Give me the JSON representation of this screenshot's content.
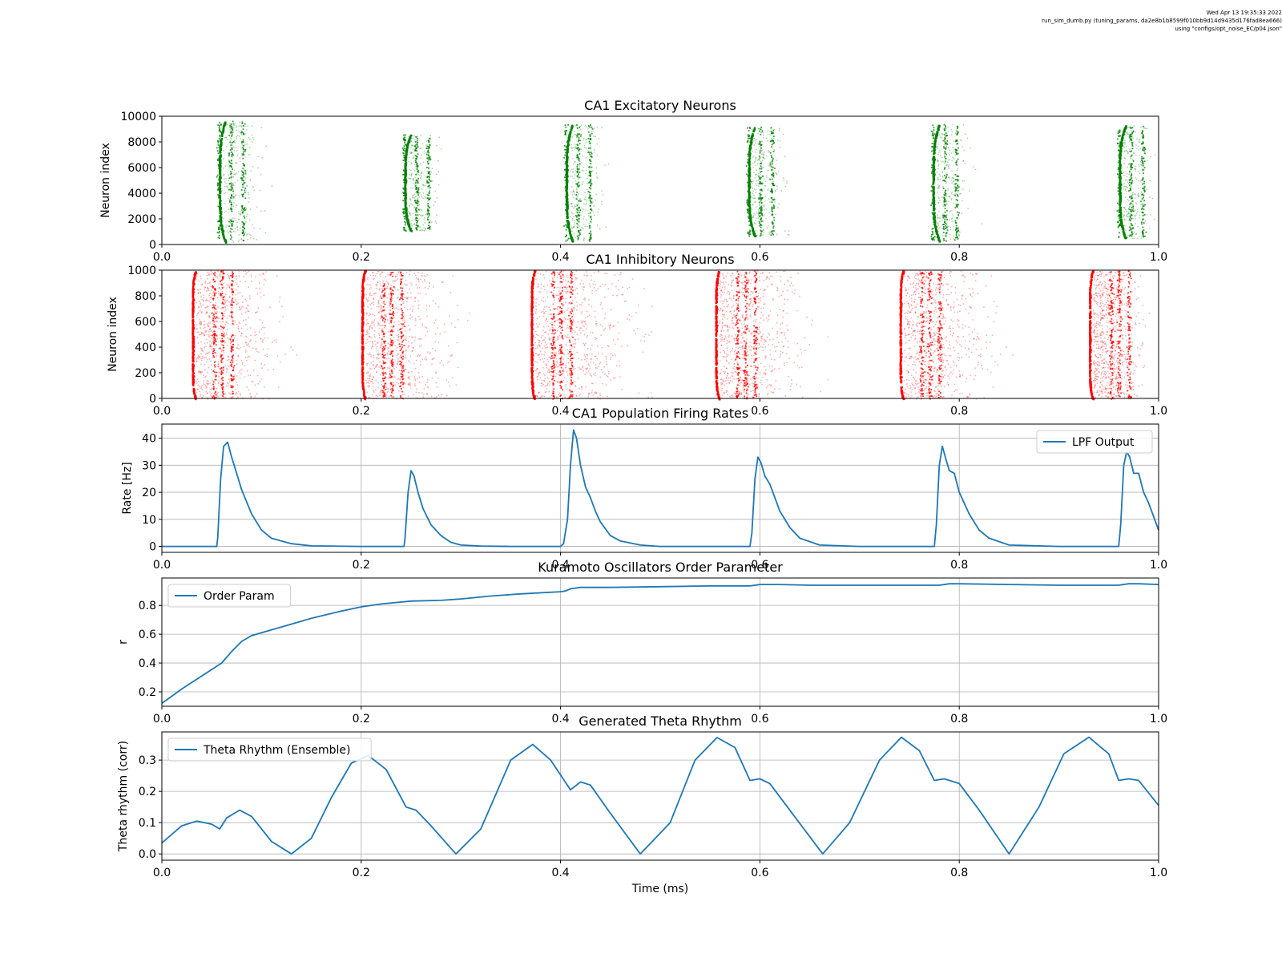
{
  "header": {
    "timestamp": "Wed Apr 13 19:35:33 2022",
    "script": "run_sim_dumb.py (tuning_params, da2e8b1b8599f010bb9d14d9435d176fad8ea666)",
    "config": "using \"configs/opt_noise_EC/p04.json\""
  },
  "colors": {
    "excitatory": "#008000",
    "inhibitory": "#ff0000",
    "line": "#1f77b4",
    "grid": "#b0b0b0"
  },
  "chart_data": [
    {
      "type": "scatter",
      "title": "CA1 Excitatory Neurons",
      "xlabel": "",
      "ylabel": "Neuron index",
      "xlim": [
        0,
        1
      ],
      "ylim": [
        0,
        10000
      ],
      "xticks": [
        "0.0",
        "0.2",
        "0.4",
        "0.6",
        "0.8",
        "1.0"
      ],
      "yticks": [
        0,
        2000,
        4000,
        6000,
        8000,
        10000
      ],
      "grid": false,
      "color": "#008000",
      "bursts": [
        {
          "start": 0.057,
          "end": 0.12,
          "low": 200,
          "high": 9700
        },
        {
          "start": 0.243,
          "end": 0.285,
          "low": 1100,
          "high": 8600
        },
        {
          "start": 0.405,
          "end": 0.455,
          "low": 300,
          "high": 9400
        },
        {
          "start": 0.588,
          "end": 0.635,
          "low": 700,
          "high": 9200
        },
        {
          "start": 0.773,
          "end": 0.825,
          "low": 300,
          "high": 9400
        },
        {
          "start": 0.96,
          "end": 1.0,
          "low": 500,
          "high": 9300
        }
      ]
    },
    {
      "type": "scatter",
      "title": "CA1 Inhibitory Neurons",
      "xlabel": "",
      "ylabel": "Neuron index",
      "xlim": [
        0,
        1
      ],
      "ylim": [
        0,
        1000
      ],
      "xticks": [
        "0.0",
        "0.2",
        "0.4",
        "0.6",
        "0.8",
        "1.0"
      ],
      "yticks": [
        0,
        200,
        400,
        600,
        800,
        1000
      ],
      "grid": false,
      "color": "#ff0000",
      "bursts": [
        {
          "start": 0.03,
          "end": 0.15,
          "low": 0,
          "high": 1000
        },
        {
          "start": 0.2,
          "end": 0.33,
          "low": 0,
          "high": 1000
        },
        {
          "start": 0.37,
          "end": 0.52,
          "low": 0,
          "high": 1000
        },
        {
          "start": 0.555,
          "end": 0.68,
          "low": 0,
          "high": 1000
        },
        {
          "start": 0.74,
          "end": 0.87,
          "low": 0,
          "high": 1000
        },
        {
          "start": 0.93,
          "end": 1.0,
          "low": 0,
          "high": 1000
        }
      ]
    },
    {
      "type": "line",
      "title": "CA1 Population Firing Rates",
      "xlabel": "",
      "ylabel": "Rate [Hz]",
      "xlim": [
        0,
        1
      ],
      "ylim": [
        -2.2,
        45.2
      ],
      "xticks": [
        "0.0",
        "0.2",
        "0.4",
        "0.6",
        "0.8",
        "1.0"
      ],
      "yticks": [
        0,
        10,
        20,
        30,
        40
      ],
      "grid": true,
      "legend": "top-right",
      "series": [
        {
          "name": "LPF Output",
          "x": [
            0,
            0.055,
            0.056,
            0.059,
            0.062,
            0.066,
            0.07,
            0.075,
            0.08,
            0.09,
            0.1,
            0.11,
            0.13,
            0.15,
            0.2,
            0.243,
            0.244,
            0.247,
            0.25,
            0.253,
            0.257,
            0.262,
            0.27,
            0.28,
            0.29,
            0.3,
            0.32,
            0.35,
            0.4,
            0.403,
            0.407,
            0.41,
            0.413,
            0.416,
            0.42,
            0.425,
            0.43,
            0.435,
            0.44,
            0.45,
            0.46,
            0.48,
            0.5,
            0.55,
            0.59,
            0.592,
            0.595,
            0.598,
            0.601,
            0.605,
            0.61,
            0.615,
            0.62,
            0.63,
            0.64,
            0.66,
            0.7,
            0.75,
            0.775,
            0.777,
            0.78,
            0.783,
            0.786,
            0.79,
            0.795,
            0.8,
            0.81,
            0.82,
            0.83,
            0.85,
            0.9,
            0.96,
            0.962,
            0.965,
            0.968,
            0.971,
            0.975,
            0.98,
            0.985,
            0.99,
            1.0
          ],
          "y": [
            0,
            0,
            3,
            25,
            37,
            38.5,
            33,
            27,
            21,
            12,
            6,
            3,
            1,
            0.2,
            0,
            0,
            3,
            20,
            28,
            26,
            20,
            14,
            8,
            4,
            1.5,
            0.5,
            0.1,
            0,
            0,
            1,
            10,
            30,
            43,
            40,
            30,
            22,
            18,
            13,
            9,
            4,
            2,
            0.5,
            0,
            0,
            0,
            5,
            25,
            33,
            31,
            26,
            23,
            18,
            13,
            7,
            3,
            0.5,
            0,
            0,
            0,
            8,
            30,
            37,
            33,
            28,
            27,
            20,
            12,
            6,
            3,
            0.5,
            0,
            0,
            8,
            30,
            35,
            33,
            27,
            27,
            20,
            16,
            6
          ]
        }
      ]
    },
    {
      "type": "line",
      "title": "Kuramoto Oscillators Order Parameter",
      "xlabel": "",
      "ylabel": "r",
      "xlim": [
        0,
        1
      ],
      "ylim": [
        0.1,
        0.99
      ],
      "xticks": [
        "0.0",
        "0.2",
        "0.4",
        "0.6",
        "0.8",
        "1.0"
      ],
      "yticks": [
        0.2,
        0.4,
        0.6,
        0.8
      ],
      "grid": true,
      "legend": "top-left",
      "series": [
        {
          "name": "Order Param",
          "x": [
            0,
            0.02,
            0.04,
            0.06,
            0.07,
            0.08,
            0.09,
            0.1,
            0.12,
            0.15,
            0.18,
            0.2,
            0.22,
            0.25,
            0.28,
            0.3,
            0.33,
            0.36,
            0.4,
            0.405,
            0.41,
            0.42,
            0.45,
            0.5,
            0.55,
            0.59,
            0.6,
            0.62,
            0.65,
            0.7,
            0.75,
            0.78,
            0.79,
            0.8,
            0.85,
            0.9,
            0.96,
            0.97,
            0.98,
            1.0
          ],
          "y": [
            0.12,
            0.22,
            0.31,
            0.4,
            0.48,
            0.55,
            0.59,
            0.61,
            0.65,
            0.71,
            0.76,
            0.79,
            0.81,
            0.83,
            0.835,
            0.845,
            0.865,
            0.88,
            0.895,
            0.9,
            0.915,
            0.925,
            0.925,
            0.93,
            0.935,
            0.935,
            0.945,
            0.945,
            0.94,
            0.94,
            0.94,
            0.94,
            0.95,
            0.95,
            0.945,
            0.94,
            0.94,
            0.95,
            0.95,
            0.945
          ]
        }
      ]
    },
    {
      "type": "line",
      "title": "Generated Theta Rhythm",
      "xlabel": "Time (ms)",
      "ylabel": "Theta rhythm (corr)",
      "xlim": [
        0,
        1
      ],
      "ylim": [
        -0.02,
        0.39
      ],
      "xticks": [
        "0.0",
        "0.2",
        "0.4",
        "0.6",
        "0.8",
        "1.0"
      ],
      "yticks": [
        0.0,
        0.1,
        0.2,
        0.3
      ],
      "grid": true,
      "legend": "top-left",
      "series": [
        {
          "name": "Theta Rhythm (Ensemble)",
          "x": [
            0,
            0.02,
            0.035,
            0.05,
            0.058,
            0.065,
            0.078,
            0.09,
            0.11,
            0.13,
            0.15,
            0.17,
            0.19,
            0.207,
            0.225,
            0.245,
            0.255,
            0.27,
            0.295,
            0.32,
            0.35,
            0.372,
            0.39,
            0.41,
            0.42,
            0.43,
            0.45,
            0.48,
            0.51,
            0.535,
            0.557,
            0.575,
            0.59,
            0.6,
            0.61,
            0.63,
            0.663,
            0.69,
            0.72,
            0.742,
            0.76,
            0.775,
            0.785,
            0.8,
            0.82,
            0.85,
            0.88,
            0.905,
            0.93,
            0.95,
            0.96,
            0.97,
            0.98,
            1.0
          ],
          "y": [
            0.035,
            0.09,
            0.105,
            0.095,
            0.08,
            0.115,
            0.14,
            0.12,
            0.04,
            0.0,
            0.05,
            0.18,
            0.29,
            0.315,
            0.27,
            0.15,
            0.14,
            0.09,
            0.0,
            0.08,
            0.3,
            0.35,
            0.3,
            0.205,
            0.23,
            0.22,
            0.13,
            0.0,
            0.1,
            0.3,
            0.372,
            0.34,
            0.235,
            0.24,
            0.225,
            0.14,
            0.0,
            0.1,
            0.3,
            0.373,
            0.33,
            0.235,
            0.24,
            0.225,
            0.14,
            0.0,
            0.15,
            0.32,
            0.373,
            0.32,
            0.235,
            0.24,
            0.235,
            0.155
          ]
        }
      ]
    }
  ]
}
